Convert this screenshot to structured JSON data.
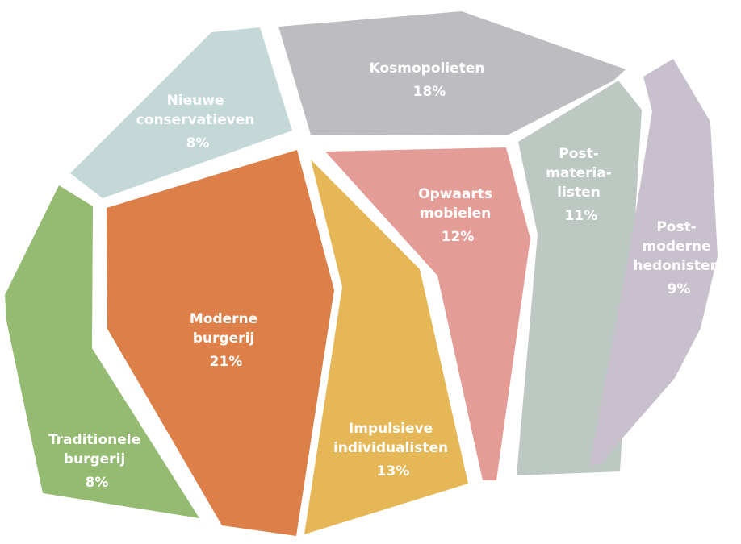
{
  "segments": [
    {
      "id": "kosmopolieten",
      "lines": [
        "Kosmopolieten"
      ],
      "value": "18%",
      "color": "#bcbcc1"
    },
    {
      "id": "nieuwe-conservatieven",
      "lines": [
        "Nieuwe",
        "conservatieven"
      ],
      "value": "8%",
      "color": "#c3d8d7"
    },
    {
      "id": "post-materialisten",
      "lines": [
        "Post-",
        "materia-",
        "listen"
      ],
      "value": "11%",
      "color": "#bec8c2"
    },
    {
      "id": "post-moderne-hedonisten",
      "lines": [
        "Post-",
        "moderne",
        "hedonisten"
      ],
      "value": "9%",
      "color": "#c8c0cd"
    },
    {
      "id": "opwaarts-mobielen",
      "lines": [
        "Opwaarts",
        "mobielen"
      ],
      "value": "12%",
      "color": "#e49d96"
    },
    {
      "id": "moderne-burgerij",
      "lines": [
        "Moderne",
        "burgerij"
      ],
      "value": "21%",
      "color": "#dd7f49"
    },
    {
      "id": "impulsieve-individualisten",
      "lines": [
        "Impulsieve",
        "individualisten"
      ],
      "value": "13%",
      "color": "#e5b756"
    },
    {
      "id": "traditionele-burgerij",
      "lines": [
        "Traditionele",
        "burgerij"
      ],
      "value": "8%",
      "color": "#94bb71"
    }
  ]
}
